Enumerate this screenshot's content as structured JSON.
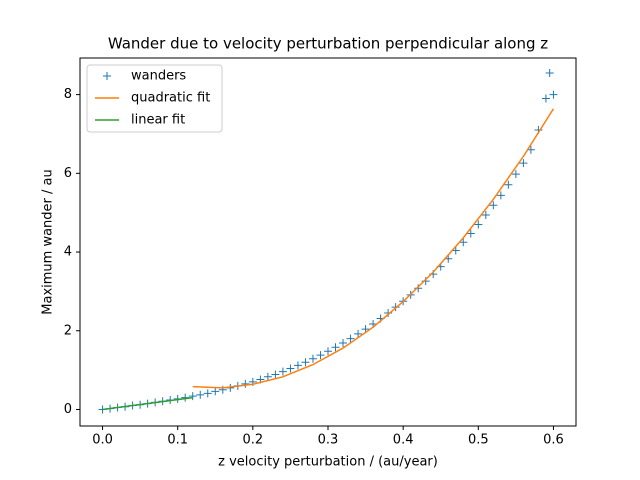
{
  "chart_data": {
    "type": "line",
    "title": "Wander due to velocity perturbation perpendicular along z",
    "x_label": "z velocity perturbation / (au/year)",
    "y_label": "Maximum wander / au",
    "xlim": [
      -0.03,
      0.63
    ],
    "ylim": [
      -0.42,
      8.93
    ],
    "xticks": [
      {
        "value": 0,
        "label": "0.0"
      },
      0.1,
      0.2,
      0.3,
      0.4,
      0.5,
      0.6
    ],
    "yticks": [
      0,
      2,
      4,
      6,
      8
    ],
    "legend": "upper left",
    "series": [
      {
        "name": "wanders",
        "color": "#1f77b4",
        "marker": "+",
        "x": [
          0,
          0.01,
          0.02,
          0.03,
          0.04,
          0.05,
          0.06,
          0.07,
          0.08,
          0.09,
          0.1,
          0.11,
          0.12,
          0.13,
          0.14,
          0.15,
          0.16,
          0.17,
          0.18,
          0.19,
          0.2,
          0.21,
          0.22,
          0.23,
          0.24,
          0.25,
          0.26,
          0.27,
          0.28,
          0.29,
          0.3,
          0.31,
          0.32,
          0.33,
          0.34,
          0.35,
          0.36,
          0.37,
          0.38,
          0.39,
          0.4,
          0.41,
          0.42,
          0.43,
          0.44,
          0.45,
          0.46,
          0.47,
          0.48,
          0.49,
          0.5,
          0.51,
          0.52,
          0.53,
          0.54,
          0.55,
          0.56,
          0.57,
          0.58,
          0.59,
          0.595,
          0.6
        ],
        "values": [
          0,
          0.02,
          0.05,
          0.07,
          0.1,
          0.12,
          0.15,
          0.18,
          0.21,
          0.24,
          0.27,
          0.3,
          0.34,
          0.37,
          0.41,
          0.46,
          0.5,
          0.55,
          0.6,
          0.65,
          0.7,
          0.76,
          0.83,
          0.89,
          0.96,
          1.04,
          1.12,
          1.2,
          1.29,
          1.38,
          1.48,
          1.58,
          1.69,
          1.8,
          1.92,
          2.04,
          2.17,
          2.31,
          2.45,
          2.6,
          2.75,
          2.91,
          3.08,
          3.26,
          3.44,
          3.63,
          3.83,
          4.04,
          4.25,
          4.47,
          4.7,
          4.94,
          5.19,
          5.44,
          5.71,
          5.98,
          6.26,
          6.6,
          7.1,
          7.9,
          8.55,
          8.0
        ]
      },
      {
        "name": "quadratic fit",
        "color": "#ff7f0e",
        "x": [
          0.12,
          0.16,
          0.2,
          0.24,
          0.28,
          0.32,
          0.36,
          0.4,
          0.44,
          0.48,
          0.52,
          0.56,
          0.6
        ],
        "values": [
          0.58,
          0.55,
          0.64,
          0.83,
          1.14,
          1.56,
          2.09,
          2.74,
          3.49,
          4.36,
          5.34,
          6.43,
          7.64
        ]
      },
      {
        "name": "linear fit",
        "color": "#2ca02c",
        "x": [
          0,
          0.12
        ],
        "values": [
          0,
          0.3
        ]
      }
    ]
  }
}
